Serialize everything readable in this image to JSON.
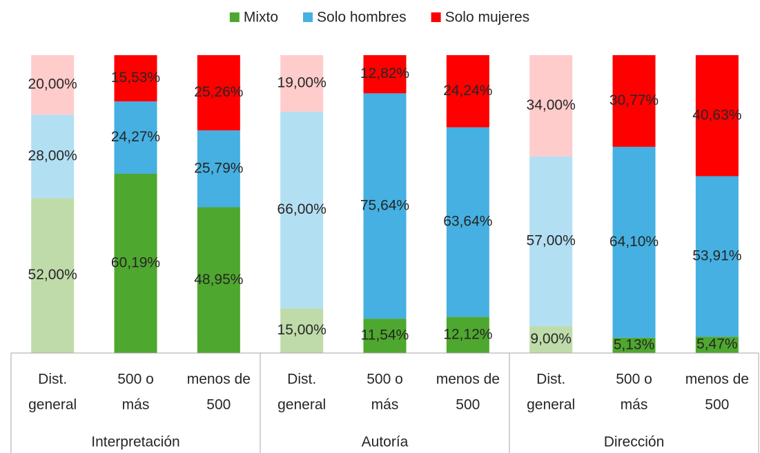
{
  "chart_data": {
    "type": "stacked_bar_100",
    "categories": [
      [
        "Dist.",
        "general"
      ],
      [
        "500 o",
        "más"
      ],
      [
        "menos de",
        "500"
      ],
      [
        "Dist.",
        "general"
      ],
      [
        "500 o",
        "más"
      ],
      [
        "menos de",
        "500"
      ],
      [
        "Dist.",
        "general"
      ],
      [
        "500 o",
        "más"
      ],
      [
        "menos de",
        "500"
      ]
    ],
    "groups": [
      "Interpretación",
      "Autoría",
      "Dirección"
    ],
    "series": [
      {
        "name": "Mixto",
        "color": "#4ea72e",
        "colors": [
          "#bfdba9",
          "#4ea72e",
          "#4ea72e",
          "#bfdba9",
          "#4ea72e",
          "#4ea72e",
          "#bfdba9",
          "#4ea72e",
          "#4ea72e"
        ],
        "values": [
          52,
          60.19,
          48.95,
          15,
          11.54,
          12.12,
          9,
          5.13,
          5.47
        ],
        "value_labels": [
          "52,00%",
          "60,19%",
          "48,95%",
          "15,00%",
          "11,54%",
          "12,12%",
          "9,00%",
          "5,13%",
          "5,47%"
        ]
      },
      {
        "name": "Solo hombres",
        "color": "#45b0e1",
        "colors": [
          "#b3dff3",
          "#45b0e1",
          "#45b0e1",
          "#b3dff3",
          "#45b0e1",
          "#45b0e1",
          "#b3dff3",
          "#45b0e1",
          "#45b0e1"
        ],
        "values": [
          28,
          24.27,
          25.79,
          66,
          75.64,
          63.64,
          57,
          64.1,
          53.91
        ],
        "value_labels": [
          "28,00%",
          "24,27%",
          "25,79%",
          "66,00%",
          "75,64%",
          "63,64%",
          "57,00%",
          "64,10%",
          "53,91%"
        ]
      },
      {
        "name": "Solo mujeres",
        "color": "#ff0000",
        "colors": [
          "#ffcccc",
          "#ff0000",
          "#ff0000",
          "#ffcccc",
          "#ff0000",
          "#ff0000",
          "#ffcccc",
          "#ff0000",
          "#ff0000"
        ],
        "values": [
          20,
          15.53,
          25.26,
          19,
          12.82,
          24.24,
          34,
          30.77,
          40.63
        ],
        "value_labels": [
          "20,00%",
          "15,53%",
          "25,26%",
          "19,00%",
          "12,82%",
          "24,24%",
          "34,00%",
          "30,77%",
          "40,63%"
        ]
      }
    ],
    "ylim": [
      0,
      100
    ],
    "legend": "top"
  }
}
